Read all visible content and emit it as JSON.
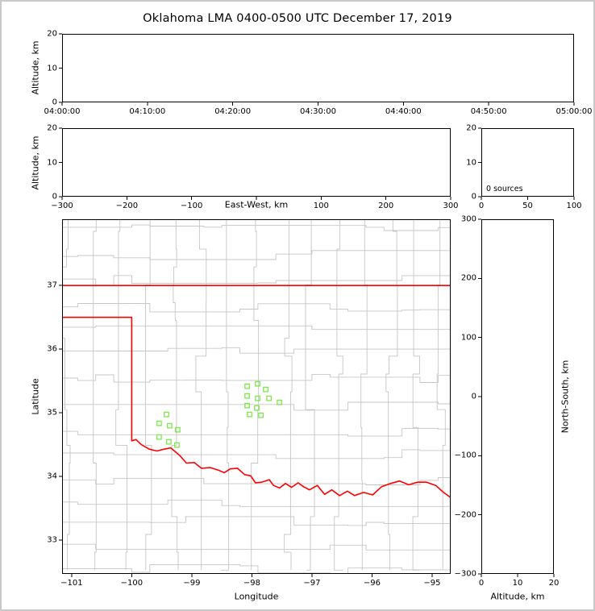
{
  "title": "Oklahoma LMA 0400-0500 UTC December 17, 2019",
  "colors": {
    "frame": "#000000",
    "tick": "#000000",
    "county_lines": "#c5c5c5",
    "state_border": "#ff0000",
    "station_marker": "#7ce84c",
    "figure_border": "#c9c9c9",
    "background": "#ffffff"
  },
  "chart_data": [
    {
      "id": "time_height",
      "type": "scatter",
      "ylabel": "Altitude, km",
      "x_ticks": [
        "04:00:00",
        "04:10:00",
        "04:20:00",
        "04:30:00",
        "04:40:00",
        "04:50:00",
        "05:00:00"
      ],
      "y_ticks": [
        0,
        10,
        20
      ],
      "ylim": [
        0,
        20
      ],
      "grid": false,
      "points": []
    },
    {
      "id": "ew_height",
      "type": "scatter",
      "xlabel": "East-West, km",
      "ylabel": "Altitude, km",
      "xlim": [
        -300,
        300
      ],
      "ylim": [
        0,
        20
      ],
      "x_ticks": [
        -300,
        -200,
        -100,
        100,
        200,
        300
      ],
      "x_tick_marks": [
        -300,
        -200,
        -100,
        0,
        100,
        200,
        300
      ],
      "y_ticks": [
        0,
        10,
        20
      ],
      "grid": false,
      "points": []
    },
    {
      "id": "source_histogram",
      "type": "bar",
      "annotation": "0 sources",
      "xlim": [
        0,
        100
      ],
      "ylim": [
        0,
        20
      ],
      "x_ticks": [
        0,
        50,
        100
      ],
      "y_ticks": [
        0,
        10,
        20
      ],
      "grid": false,
      "values": []
    },
    {
      "id": "plan_view_map",
      "type": "scatter",
      "xlabel": "Longitude",
      "ylabel": "Latitude",
      "xlim": [
        -101.16,
        -94.69
      ],
      "ylim": [
        32.47,
        38.04
      ],
      "x_ticks": [
        -101,
        -100,
        -99,
        -98,
        -97,
        -96,
        -95
      ],
      "y_ticks": [
        33,
        34,
        35,
        36,
        37
      ],
      "grid": false,
      "stations": [
        [
          -99.423,
          34.975
        ],
        [
          -99.544,
          34.835
        ],
        [
          -99.369,
          34.797
        ],
        [
          -99.235,
          34.734
        ],
        [
          -99.544,
          34.62
        ],
        [
          -99.383,
          34.544
        ],
        [
          -99.248,
          34.494
        ],
        [
          -98.079,
          35.418
        ],
        [
          -97.904,
          35.456
        ],
        [
          -97.77,
          35.367
        ],
        [
          -98.079,
          35.266
        ],
        [
          -97.904,
          35.228
        ],
        [
          -97.715,
          35.228
        ],
        [
          -97.541,
          35.165
        ],
        [
          -98.079,
          35.114
        ],
        [
          -97.918,
          35.076
        ],
        [
          -98.038,
          34.975
        ],
        [
          -97.85,
          34.962
        ]
      ],
      "state_border": {
        "north_boundary_lat37": [
          [
            -101.16,
            37.0
          ],
          [
            -94.69,
            37.0
          ]
        ],
        "west_and_south_boundary": [
          [
            -101.16,
            36.5
          ],
          [
            -100.0,
            36.5
          ],
          [
            -100.0,
            34.56
          ],
          [
            -99.93,
            34.58
          ],
          [
            -99.84,
            34.5
          ],
          [
            -99.71,
            34.43
          ],
          [
            -99.58,
            34.4
          ],
          [
            -99.46,
            34.43
          ],
          [
            -99.35,
            34.45
          ],
          [
            -99.2,
            34.33
          ],
          [
            -99.09,
            34.21
          ],
          [
            -98.96,
            34.22
          ],
          [
            -98.84,
            34.13
          ],
          [
            -98.69,
            34.14
          ],
          [
            -98.56,
            34.1
          ],
          [
            -98.46,
            34.06
          ],
          [
            -98.36,
            34.12
          ],
          [
            -98.24,
            34.13
          ],
          [
            -98.12,
            34.03
          ],
          [
            -98.02,
            34.01
          ],
          [
            -97.94,
            33.9
          ],
          [
            -97.84,
            33.91
          ],
          [
            -97.71,
            33.95
          ],
          [
            -97.64,
            33.86
          ],
          [
            -97.54,
            33.82
          ],
          [
            -97.44,
            33.89
          ],
          [
            -97.34,
            33.83
          ],
          [
            -97.23,
            33.9
          ],
          [
            -97.14,
            33.84
          ],
          [
            -97.04,
            33.79
          ],
          [
            -96.91,
            33.86
          ],
          [
            -96.79,
            33.72
          ],
          [
            -96.67,
            33.79
          ],
          [
            -96.54,
            33.7
          ],
          [
            -96.41,
            33.77
          ],
          [
            -96.29,
            33.7
          ],
          [
            -96.14,
            33.75
          ],
          [
            -95.99,
            33.71
          ],
          [
            -95.84,
            33.84
          ],
          [
            -95.69,
            33.89
          ],
          [
            -95.54,
            33.93
          ],
          [
            -95.39,
            33.87
          ],
          [
            -95.24,
            33.91
          ],
          [
            -95.09,
            33.91
          ],
          [
            -94.94,
            33.86
          ],
          [
            -94.81,
            33.75
          ],
          [
            -94.69,
            33.67
          ]
        ]
      }
    },
    {
      "id": "ns_height",
      "type": "scatter",
      "xlabel": "Altitude, km",
      "ylabel": "North-South, km",
      "xlim": [
        0,
        20
      ],
      "ylim": [
        -300,
        300
      ],
      "x_ticks": [
        0,
        10,
        20
      ],
      "y_ticks": [
        300,
        200,
        100,
        0,
        -100,
        -200,
        -300
      ],
      "grid": false,
      "points": []
    }
  ]
}
